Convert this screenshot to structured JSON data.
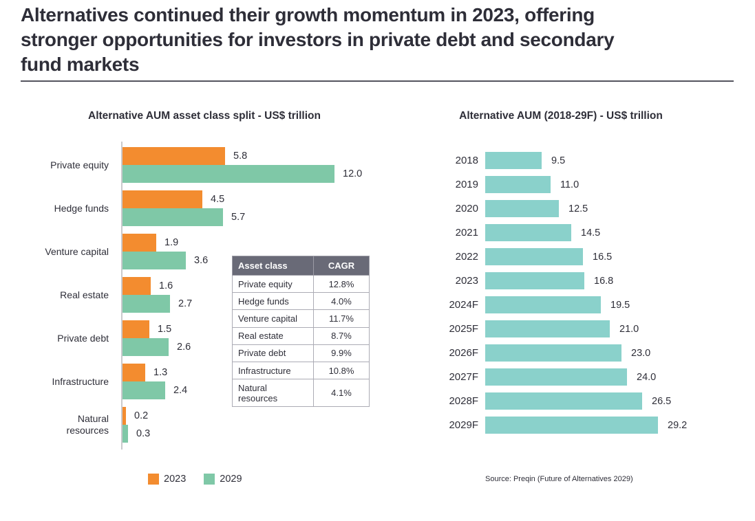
{
  "page": {
    "title_lines": [
      "Alternatives continued their growth momentum in 2023, offering",
      "stronger opportunities for investors in private debt and secondary",
      "fund markets"
    ],
    "source": "Source: Preqin (Future of Alternatives 2029)"
  },
  "colors": {
    "title_text": "#2E2E38",
    "orange_2023": "#F38C2F",
    "green_2029": "#7FC8A7",
    "teal_aum_bar": "#8AD1CB",
    "table_header_bg": "#696A77",
    "axis_line": "#C9C9CC",
    "divider": "#53535E"
  },
  "chart_data": [
    {
      "type": "bar",
      "orientation": "horizontal",
      "title": "Alternative AUM asset class split - US$ trillion",
      "categories": [
        "Private equity",
        "Hedge funds",
        "Venture capital",
        "Real estate",
        "Private debt",
        "Infrastructure",
        "Natural resources"
      ],
      "series": [
        {
          "name": "2023",
          "color": "#F38C2F",
          "values": [
            5.8,
            4.5,
            1.9,
            1.6,
            1.5,
            1.3,
            0.2
          ]
        },
        {
          "name": "2029",
          "color": "#7FC8A7",
          "values": [
            12.0,
            5.7,
            3.6,
            2.7,
            2.6,
            2.4,
            0.3
          ]
        }
      ],
      "xlim": [
        0,
        12
      ],
      "value_labels": true,
      "grid": false,
      "legend_position": "bottom"
    },
    {
      "type": "bar",
      "orientation": "horizontal",
      "title": "Alternative AUM (2018-29F) - US$ trillion",
      "categories": [
        "2018",
        "2019",
        "2020",
        "2021",
        "2022",
        "2023",
        "2024F",
        "2025F",
        "2026F",
        "2027F",
        "2028F",
        "2029F"
      ],
      "values": [
        9.5,
        11.0,
        12.5,
        14.5,
        16.5,
        16.8,
        19.5,
        21.0,
        23.0,
        24.0,
        26.5,
        29.2
      ],
      "bar_color": "#8AD1CB",
      "xlim": [
        0,
        29.2
      ],
      "value_labels": true,
      "grid": false,
      "legend_position": "none"
    },
    {
      "type": "table",
      "headers": [
        "Asset class",
        "CAGR"
      ],
      "rows": [
        [
          "Private equity",
          "12.8%"
        ],
        [
          "Hedge funds",
          "4.0%"
        ],
        [
          "Venture capital",
          "11.7%"
        ],
        [
          "Real estate",
          "8.7%"
        ],
        [
          "Private debt",
          "9.9%"
        ],
        [
          "Infrastructure",
          "10.8%"
        ],
        [
          "Natural resources",
          "4.1%"
        ]
      ]
    }
  ]
}
